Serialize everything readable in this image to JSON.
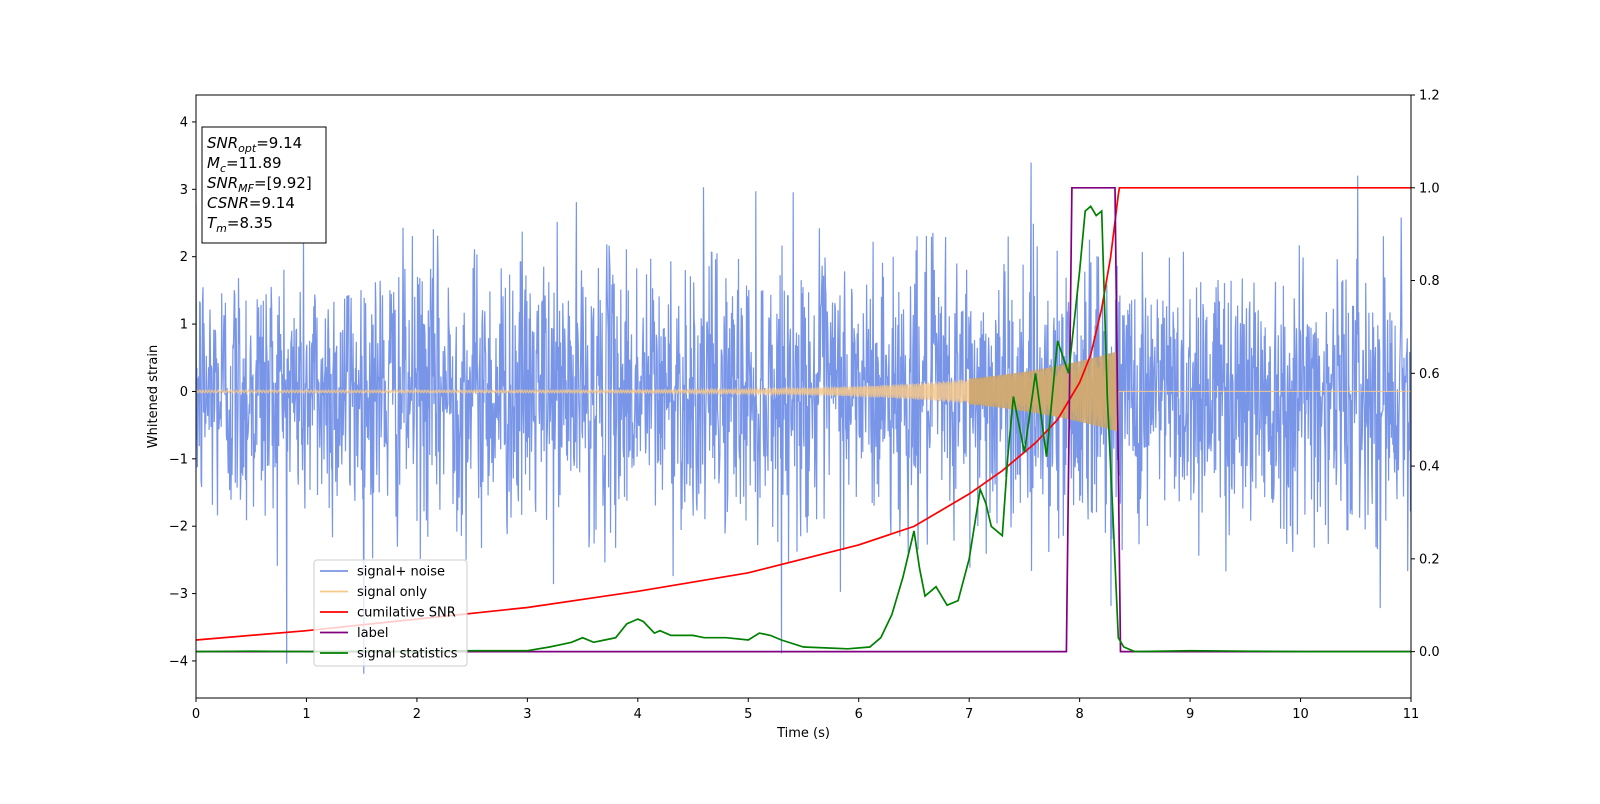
{
  "chart_data": {
    "type": "line",
    "xlabel": "Time (s)",
    "ylabel": "Whitened strain",
    "xlim": [
      0,
      11
    ],
    "ylim": [
      -4.55,
      4.4
    ],
    "y2lim": [
      -0.1,
      1.2
    ],
    "xticks": [
      "0",
      "1",
      "2",
      "3",
      "4",
      "5",
      "6",
      "7",
      "8",
      "9",
      "10",
      "11"
    ],
    "yticks": [
      "−4",
      "−3",
      "−2",
      "−1",
      "0",
      "1",
      "2",
      "3",
      "4"
    ],
    "y2ticks": [
      "0.0",
      "0.2",
      "0.4",
      "0.6",
      "0.8",
      "1.0",
      "1.2"
    ],
    "grid": false,
    "legend_position": "lower-left",
    "annotation_box": [
      {
        "sym": "SNR",
        "sub": "opt",
        "rest": "=9.14"
      },
      {
        "sym": "M",
        "sub": "c",
        "rest": "=11.89"
      },
      {
        "sym": "SNR",
        "sub": "MF",
        "rest": "=[9.92]"
      },
      {
        "sym": "CSNR",
        "sub": "",
        "rest": "=9.14"
      },
      {
        "sym": "T",
        "sub": "m",
        "rest": "=8.35"
      }
    ],
    "series": [
      {
        "name": "signal+ noise",
        "color": "#7895e8",
        "axis": "left",
        "description_values": {
          "noise_std": 1.0,
          "approx_peak_abs": 3.7
        }
      },
      {
        "name": "signal only",
        "color": "#f6c88a",
        "axis": "left",
        "chirp_start": 0,
        "chirp_end": 8.35,
        "amplitude_start": 0.02,
        "amplitude_end": 0.6
      },
      {
        "name": "cumilative SNR",
        "color": "#ff0000",
        "axis": "right",
        "x": [
          0,
          1,
          2,
          3,
          4,
          5,
          6,
          6.5,
          7,
          7.3,
          7.6,
          7.8,
          8.0,
          8.1,
          8.2,
          8.28,
          8.35,
          8.36,
          11
        ],
        "y": [
          0.025,
          0.045,
          0.07,
          0.095,
          0.13,
          0.17,
          0.23,
          0.27,
          0.34,
          0.39,
          0.45,
          0.5,
          0.58,
          0.64,
          0.74,
          0.85,
          0.985,
          1.0,
          1.0
        ]
      },
      {
        "name": "label",
        "color": "#800080",
        "axis": "right",
        "x": [
          0,
          7.88,
          7.93,
          8.32,
          8.37,
          11
        ],
        "y": [
          0,
          0,
          1,
          1,
          0,
          0
        ]
      },
      {
        "name": "signal statistics",
        "color": "#008000",
        "axis": "right",
        "x": [
          0,
          0.5,
          1,
          1.5,
          2,
          2.5,
          3,
          3.2,
          3.3,
          3.4,
          3.5,
          3.6,
          3.7,
          3.8,
          3.9,
          4.0,
          4.05,
          4.15,
          4.2,
          4.3,
          4.5,
          4.6,
          4.8,
          5.0,
          5.1,
          5.2,
          5.3,
          5.5,
          5.7,
          5.9,
          6.1,
          6.2,
          6.3,
          6.4,
          6.5,
          6.55,
          6.6,
          6.7,
          6.8,
          6.9,
          7.0,
          7.1,
          7.15,
          7.2,
          7.3,
          7.35,
          7.4,
          7.5,
          7.6,
          7.7,
          7.8,
          7.9,
          8.0,
          8.05,
          8.1,
          8.15,
          8.2,
          8.25,
          8.3,
          8.35,
          8.4,
          8.5,
          9,
          9.5,
          10,
          11
        ],
        "y": [
          0.0,
          0.001,
          0.0,
          0.001,
          0.0,
          0.002,
          0.002,
          0.01,
          0.015,
          0.02,
          0.03,
          0.02,
          0.025,
          0.03,
          0.06,
          0.07,
          0.065,
          0.04,
          0.045,
          0.035,
          0.035,
          0.03,
          0.03,
          0.025,
          0.04,
          0.035,
          0.025,
          0.01,
          0.008,
          0.006,
          0.01,
          0.03,
          0.08,
          0.16,
          0.26,
          0.18,
          0.12,
          0.14,
          0.1,
          0.11,
          0.2,
          0.35,
          0.32,
          0.27,
          0.25,
          0.42,
          0.55,
          0.43,
          0.6,
          0.42,
          0.67,
          0.6,
          0.82,
          0.95,
          0.96,
          0.94,
          0.95,
          0.55,
          0.3,
          0.03,
          0.01,
          0.0,
          0.002,
          0.001,
          0.0,
          0.0
        ]
      }
    ]
  }
}
